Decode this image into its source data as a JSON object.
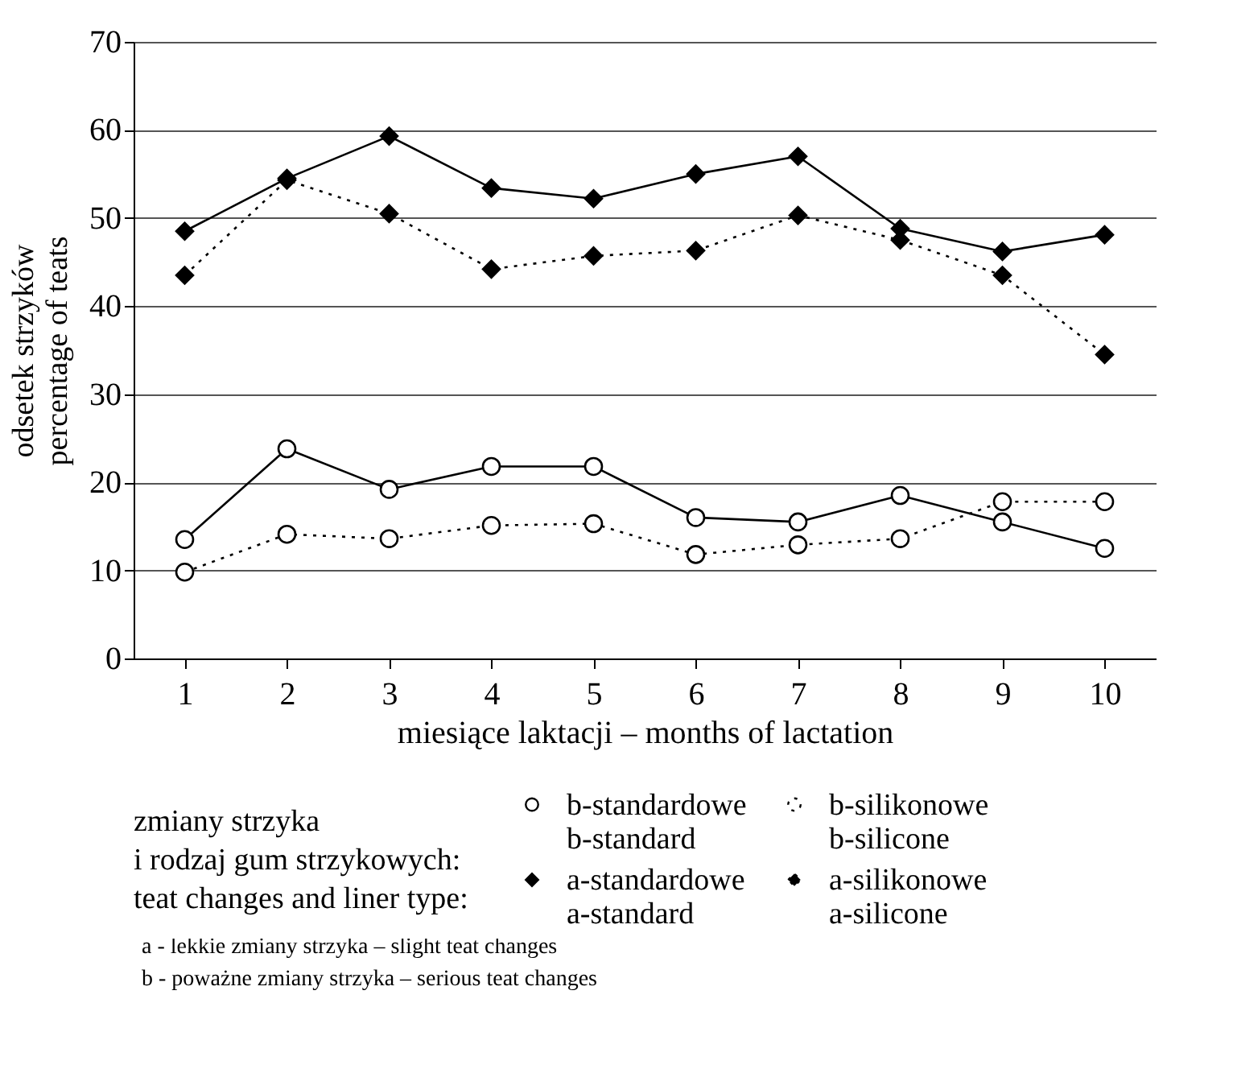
{
  "chart_data": {
    "type": "line",
    "xlabel": "miesiące laktacji –  months of lactation",
    "ylabel": "odsetek strzyków\npercentage of teats",
    "legend_title": "zmiany strzyka\ni rodzaj gum strzykowych:\nteat changes and liner type:",
    "categories": [
      "1",
      "2",
      "3",
      "4",
      "5",
      "6",
      "7",
      "8",
      "9",
      "10"
    ],
    "ylim": [
      0,
      70
    ],
    "yticks": [
      0,
      10,
      20,
      30,
      40,
      50,
      60,
      70
    ],
    "grid": "y",
    "legend": "bottom",
    "series": [
      {
        "name": "b-standardowe\nb-standard",
        "color": "#000000",
        "marker": "circle",
        "line_style": "solid",
        "values": [
          13.5,
          23.8,
          19.2,
          21.8,
          21.8,
          16,
          15.5,
          18.5,
          15.5,
          12.5
        ]
      },
      {
        "name": "b-silikonowe\nb-silicone",
        "color": "#000000",
        "marker": "circle",
        "line_style": "dotted",
        "values": [
          9.8,
          14.1,
          13.6,
          15.1,
          15.3,
          11.8,
          12.9,
          13.6,
          17.8,
          17.8
        ]
      },
      {
        "name": "a-standardowe\na-standard",
        "color": "#000000",
        "marker": "diamond",
        "line_style": "solid",
        "values": [
          48.5,
          54.5,
          59.3,
          53.4,
          52.2,
          55,
          57,
          48.8,
          46.2,
          48.1
        ]
      },
      {
        "name": "a-silikonowe\na-silicone",
        "color": "#000000",
        "marker": "diamond",
        "line_style": "dotted",
        "values": [
          43.5,
          54.3,
          50.5,
          44.2,
          45.7,
          46.3,
          50.3,
          47.5,
          43.5,
          34.5
        ]
      }
    ],
    "annotations": [
      "a - lekkie zmiany strzyka – slight teat changes",
      "b - poważne zmiany strzyka – serious teat changes"
    ]
  }
}
